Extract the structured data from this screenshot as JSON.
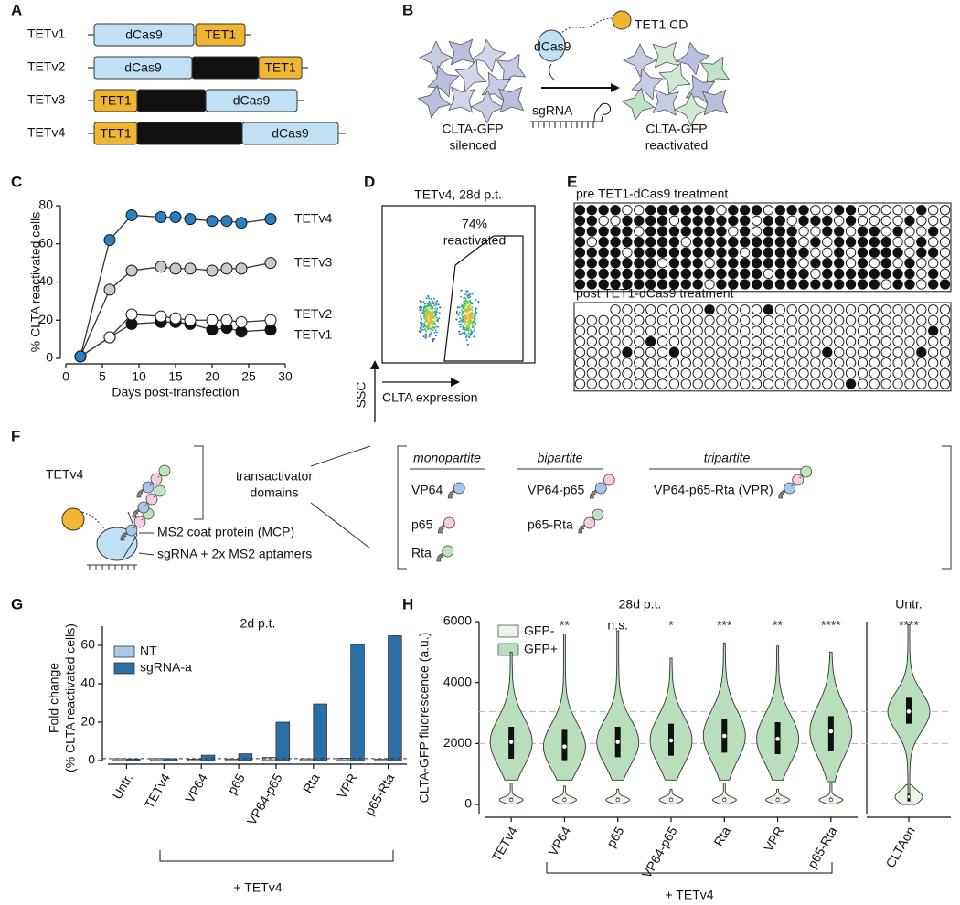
{
  "panel_labels": [
    "A",
    "B",
    "C",
    "D",
    "E",
    "F",
    "G",
    "H"
  ],
  "panel_a": {
    "constructs": [
      {
        "name": "TETv1",
        "parts": [
          "dCas9",
          "TET1"
        ]
      },
      {
        "name": "TETv2",
        "parts": [
          "dCas9",
          null,
          "TET1"
        ]
      },
      {
        "name": "TETv3",
        "parts": [
          "TET1",
          null,
          "dCas9"
        ]
      },
      {
        "name": "TETv4",
        "parts": [
          "TET1",
          null,
          "dCas9"
        ]
      }
    ]
  },
  "panel_b": {
    "effector": "TET1 CD",
    "dcas9": "dCas9",
    "sgrna": "sgRNA",
    "before": [
      "CLTA-GFP",
      "silenced"
    ],
    "after": [
      "CLTA-GFP",
      "reactivated"
    ]
  },
  "panel_d": {
    "title": "TETv4, 28d p.t.",
    "gate_label": [
      "74%",
      "reactivated"
    ],
    "y_label": "SSC",
    "x_label": "CLTA expression"
  },
  "panel_e": {
    "pre": {
      "label": "pre TET1-dCas9 treatment",
      "rows": [
        "11110011111101110111001100000100",
        "11001111011111101101110100001000",
        "11111011111110101110011011010010",
        "10111111101111111110101111100100",
        "11110111111111011111001011110110",
        "11111110111011111110111010101000",
        "11111111111111110111011111111010",
        "11111111111011111111111111011011"
      ]
    },
    "post": {
      "label": "post TET1-dCas9 treatment",
      "rows": [
        "---00000000100001000000000000000",
        "00000000000000000000000000000000",
        "00000000000000000000000000000010",
        "00000010000000000000000000000000",
        "00001000100000000000010000000100",
        "00000000000000000000000000000000",
        "00000000000000000000000000000000",
        "00000000000000000000000100000000"
      ]
    }
  },
  "panel_f": {
    "construct": "TETv4",
    "domains_label": [
      "transactivator",
      "domains"
    ],
    "mcp": "MS2 coat protein (MCP)",
    "sgrna": "sgRNA + 2x MS2 aptamers",
    "groups": [
      {
        "name": "monopartite",
        "items": [
          "VP64",
          "p65",
          "Rta"
        ]
      },
      {
        "name": "bipartite",
        "items": [
          "VP64-p65",
          "p65-Rta"
        ]
      },
      {
        "name": "tripartite",
        "items": [
          "VP64-p65-Rta (VPR)"
        ]
      }
    ]
  },
  "chart_data": [
    {
      "type": "line",
      "x_label": "Days post-transfection",
      "y_label": "% CLTA reactivated cells",
      "x": [
        2,
        6,
        9,
        13,
        15,
        17,
        20,
        22,
        24,
        28
      ],
      "xlim": [
        0,
        30
      ],
      "xticks": [
        0,
        5,
        10,
        15,
        20,
        25,
        30
      ],
      "ylim": [
        0,
        80
      ],
      "yticks": [
        0,
        20,
        40,
        60,
        80
      ],
      "series": [
        {
          "name": "TETv4",
          "color": "#2a7fc1",
          "values": [
            1,
            62,
            75,
            74,
            74,
            73,
            72,
            72,
            71,
            73
          ]
        },
        {
          "name": "TETv3",
          "color": "#c9c9ce",
          "values": [
            1,
            36,
            46,
            48,
            47,
            47,
            46,
            47,
            47,
            50
          ]
        },
        {
          "name": "TETv2",
          "color": "#ffffff",
          "values": [
            1,
            11,
            23,
            22,
            21,
            20,
            20,
            20,
            19,
            20
          ]
        },
        {
          "name": "TETv1",
          "color": "#111111",
          "values": [
            1,
            11,
            18,
            19,
            19,
            18,
            15,
            16,
            14,
            15
          ],
          "errors": [
            1,
            1,
            2,
            3,
            2,
            3,
            3,
            3,
            3,
            3
          ]
        }
      ]
    },
    {
      "type": "bar",
      "title": "2d p.t.",
      "y_label": [
        "Fold change",
        "(% CLTA reactivated cells)"
      ],
      "group_label": "+ TETv4",
      "categories": [
        "Untr.",
        "TETv4",
        "VP64",
        "p65",
        "VP64-p65",
        "Rta",
        "VPR",
        "p65-Rta"
      ],
      "ylim": [
        0,
        70
      ],
      "yticks": [
        0,
        20,
        40,
        60
      ],
      "reference_line": 1,
      "series": [
        {
          "name": "NT",
          "color": "#a9cbe6",
          "values": [
            1,
            1,
            0.7,
            0.8,
            1.6,
            0.9,
            1.2,
            0.8
          ]
        },
        {
          "name": "sgRNA-a",
          "color": "#2c6ea6",
          "values": [
            0.8,
            1,
            2.8,
            3.5,
            20,
            29.5,
            60.5,
            65
          ]
        }
      ]
    },
    {
      "type": "violin",
      "title": "28d p.t.",
      "title2": "Untr.",
      "y_label": "CLTA-GFP fluorescence (a.u.)",
      "group_label": "+ TETv4",
      "categories": [
        "TETv4",
        "VP64",
        "p65",
        "VP64-p65",
        "Rta",
        "VPR",
        "p65-Rta",
        "CLTAon"
      ],
      "annotations": [
        null,
        "**",
        "n.s.",
        "*",
        "***",
        "**",
        "****",
        "****"
      ],
      "ylim": [
        -300,
        6000
      ],
      "yticks": [
        0,
        2000,
        4000,
        6000
      ],
      "reference_lines": [
        2000,
        3050
      ],
      "series": [
        {
          "name": "GFP-",
          "color": "#eaf5e6",
          "min": [
            20,
            20,
            20,
            20,
            20,
            20,
            20,
            0
          ],
          "q1": [
            100,
            100,
            100,
            100,
            100,
            100,
            100,
            100
          ],
          "median": [
            150,
            150,
            150,
            150,
            150,
            150,
            150,
            250
          ],
          "q3": [
            220,
            220,
            220,
            220,
            220,
            220,
            220,
            380
          ],
          "max": [
            700,
            600,
            500,
            500,
            700,
            500,
            700,
            650
          ]
        },
        {
          "name": "GFP+",
          "color": "#b9debb",
          "min": [
            800,
            800,
            800,
            800,
            800,
            800,
            750,
            350
          ],
          "q1": [
            1500,
            1450,
            1550,
            1600,
            1700,
            1650,
            1750,
            2650
          ],
          "median": [
            2050,
            1900,
            2050,
            2100,
            2250,
            2150,
            2400,
            3050
          ],
          "q3": [
            2550,
            2450,
            2550,
            2650,
            2800,
            2700,
            2900,
            3500
          ],
          "max": [
            5000,
            5600,
            5700,
            4800,
            5300,
            5200,
            5000,
            5900
          ]
        }
      ]
    }
  ]
}
